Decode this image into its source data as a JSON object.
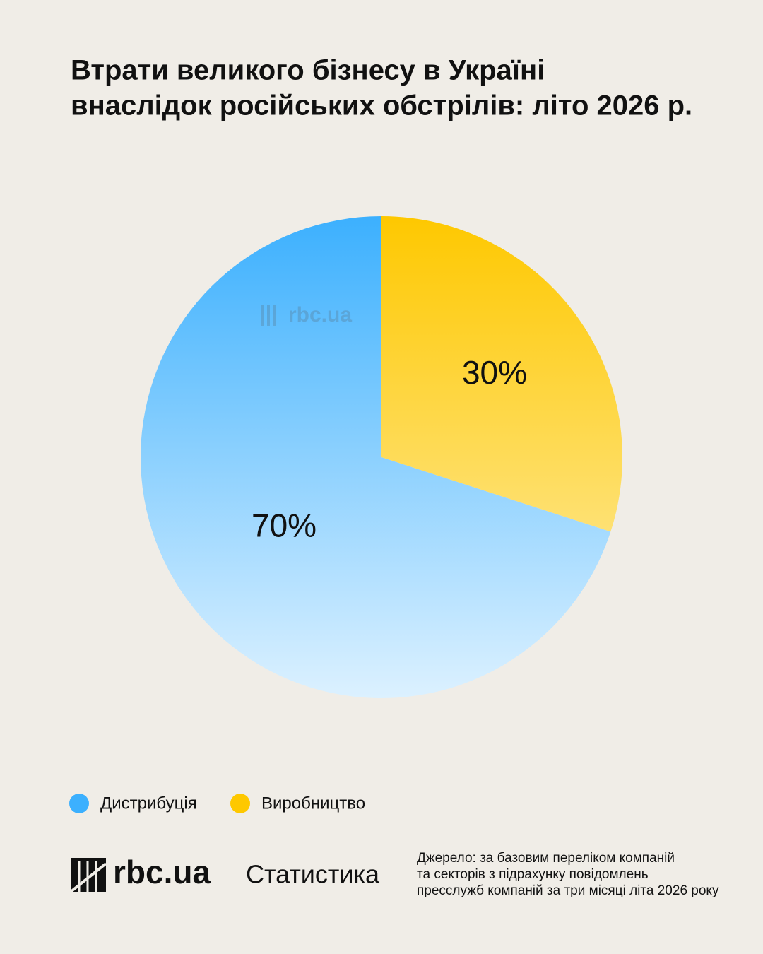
{
  "chart_data": {
    "type": "pie",
    "title_lines": [
      "Втрати великого бізнесу в Україні",
      "внаслідок російських обстрілів: літо 2026 р."
    ],
    "categories": [
      "Дистрибуція",
      "Виробництво"
    ],
    "values": [
      70,
      30
    ],
    "value_labels": [
      "70%",
      "30%"
    ],
    "colors": [
      "#3cb0fe",
      "#fec800"
    ],
    "watermark": "rbc.ua"
  },
  "footer": {
    "brand": "rbc.ua",
    "section": "Статистика",
    "source_lines": [
      "Джерело: за базовим переліком компаній",
      "та секторів з підрахунку повідомлень",
      "пресслужб компаній за три місяці літа 2026 року"
    ]
  }
}
